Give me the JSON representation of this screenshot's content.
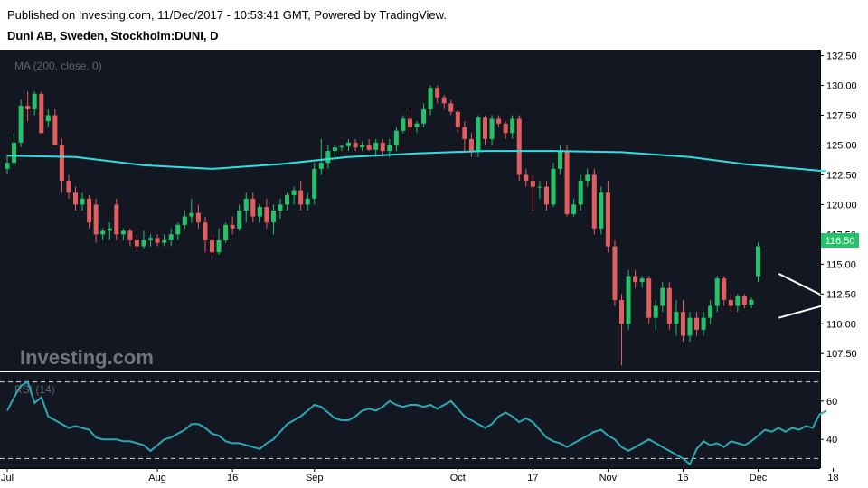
{
  "header": {
    "published": "Published on Investing.com, 11/Dec/2017 - 10:53:41 GMT, Powered by TradingView.",
    "symbol": "Duni AB, Sweden, Stockholm:DUNI, D"
  },
  "watermark": "Investing.com",
  "indicator_label": "MA (200, close, 0)",
  "rsi_label": "RSI (14)",
  "last_price_label": "116.50",
  "colors": {
    "background": "#131722",
    "up": "#26c26a",
    "down": "#e25d5d",
    "ma": "#2ee0e0",
    "rsi": "#2aa9b4",
    "axis_text": "#000000",
    "badge": "#26c26a"
  },
  "chart_data": [
    {
      "type": "candlestick",
      "title": "Duni AB, Sweden, Stockholm:DUNI, D",
      "y_ticks": [
        "107.50",
        "110.00",
        "112.50",
        "115.00",
        "117.50",
        "120.00",
        "122.50",
        "125.00",
        "127.50",
        "130.00",
        "132.50"
      ],
      "ylim": [
        106.0,
        133.0
      ],
      "x_ticks": [
        {
          "label": "Jul",
          "index": 0
        },
        {
          "label": "Aug",
          "index": 22
        },
        {
          "label": "16",
          "index": 33
        },
        {
          "label": "Sep",
          "index": 45
        },
        {
          "label": "Oct",
          "index": 66
        },
        {
          "label": "17",
          "index": 77
        },
        {
          "label": "Nov",
          "index": 88
        },
        {
          "label": "16",
          "index": 99
        },
        {
          "label": "Dec",
          "index": 110
        },
        {
          "label": "18",
          "index": 121
        }
      ],
      "candles": [
        [
          123.0,
          124.2,
          122.6,
          123.5
        ],
        [
          123.5,
          126.0,
          123.0,
          125.2
        ],
        [
          125.2,
          128.8,
          124.8,
          128.3
        ],
        [
          128.3,
          129.5,
          127.0,
          128.0
        ],
        [
          128.0,
          129.5,
          127.5,
          129.3
        ],
        [
          129.3,
          129.5,
          126.0,
          126.0
        ],
        [
          127.0,
          128.0,
          126.5,
          127.5
        ],
        [
          127.5,
          128.0,
          125.0,
          125.0
        ],
        [
          125.0,
          125.5,
          121.0,
          122.0
        ],
        [
          122.0,
          122.5,
          120.5,
          121.0
        ],
        [
          121.0,
          121.5,
          119.5,
          120.0
        ],
        [
          120.0,
          121.0,
          119.5,
          120.5
        ],
        [
          120.5,
          120.8,
          118.0,
          118.5
        ],
        [
          120.0,
          120.5,
          116.8,
          117.5
        ],
        [
          117.5,
          118.0,
          117.0,
          117.8
        ],
        [
          117.8,
          118.5,
          117.0,
          118.0
        ],
        [
          120.0,
          120.5,
          117.0,
          117.5
        ],
        [
          117.5,
          118.0,
          117.0,
          117.8
        ],
        [
          117.8,
          118.0,
          116.5,
          117.0
        ],
        [
          117.0,
          117.5,
          116.0,
          116.5
        ],
        [
          116.5,
          117.8,
          116.3,
          117.0
        ],
        [
          117.0,
          117.5,
          116.5,
          117.2
        ],
        [
          117.2,
          117.5,
          116.5,
          116.8
        ],
        [
          116.8,
          117.5,
          116.5,
          117.0
        ],
        [
          117.0,
          118.0,
          116.5,
          117.5
        ],
        [
          117.5,
          118.5,
          117.0,
          118.3
        ],
        [
          118.3,
          119.5,
          118.0,
          119.0
        ],
        [
          119.0,
          120.5,
          118.5,
          119.3
        ],
        [
          119.3,
          120.0,
          118.0,
          118.5
        ],
        [
          118.5,
          119.0,
          116.0,
          117.0
        ],
        [
          117.0,
          117.5,
          115.5,
          116.0
        ],
        [
          116.0,
          118.0,
          115.8,
          117.0
        ],
        [
          117.0,
          118.5,
          116.8,
          118.3
        ],
        [
          118.3,
          119.0,
          117.5,
          118.0
        ],
        [
          118.0,
          120.0,
          117.8,
          119.5
        ],
        [
          119.5,
          121.0,
          118.5,
          120.5
        ],
        [
          120.5,
          121.0,
          118.5,
          119.0
        ],
        [
          119.0,
          120.0,
          118.5,
          119.8
        ],
        [
          119.8,
          120.5,
          118.0,
          118.5
        ],
        [
          118.5,
          120.0,
          117.5,
          119.5
        ],
        [
          119.5,
          120.5,
          118.8,
          120.0
        ],
        [
          120.0,
          121.0,
          119.5,
          120.8
        ],
        [
          120.8,
          121.5,
          120.0,
          121.2
        ],
        [
          121.2,
          122.0,
          119.5,
          120.0
        ],
        [
          120.0,
          121.0,
          119.5,
          120.5
        ],
        [
          120.5,
          123.5,
          120.0,
          123.0
        ],
        [
          123.0,
          125.5,
          122.5,
          123.5
        ],
        [
          123.5,
          125.0,
          123.0,
          124.5
        ],
        [
          124.5,
          125.0,
          124.0,
          124.8
        ],
        [
          124.8,
          125.0,
          124.5,
          124.9
        ],
        [
          124.9,
          125.5,
          124.5,
          125.2
        ],
        [
          125.2,
          125.5,
          124.5,
          124.8
        ],
        [
          124.8,
          125.3,
          124.5,
          125.0
        ],
        [
          125.0,
          125.5,
          124.5,
          124.6
        ],
        [
          124.6,
          125.5,
          124.0,
          125.2
        ],
        [
          125.2,
          125.5,
          124.0,
          124.5
        ],
        [
          124.5,
          125.5,
          124.0,
          125.0
        ],
        [
          125.0,
          126.5,
          124.5,
          126.2
        ],
        [
          126.2,
          127.5,
          126.0,
          127.2
        ],
        [
          127.2,
          128.0,
          126.0,
          126.5
        ],
        [
          126.5,
          127.0,
          126.0,
          126.8
        ],
        [
          126.8,
          128.5,
          126.5,
          128.0
        ],
        [
          128.0,
          130.0,
          127.5,
          129.8
        ],
        [
          129.8,
          130.0,
          128.5,
          129.0
        ],
        [
          129.0,
          129.2,
          128.0,
          128.5
        ],
        [
          128.5,
          128.8,
          127.5,
          127.8
        ],
        [
          127.8,
          128.0,
          126.0,
          126.5
        ],
        [
          126.5,
          127.0,
          124.5,
          125.5
        ],
        [
          125.5,
          126.0,
          124.0,
          124.5
        ],
        [
          124.5,
          127.5,
          124.0,
          127.3
        ],
        [
          127.3,
          127.5,
          125.0,
          125.5
        ],
        [
          125.5,
          127.5,
          125.0,
          127.2
        ],
        [
          127.2,
          127.5,
          126.5,
          126.8
        ],
        [
          126.8,
          127.0,
          125.5,
          126.0
        ],
        [
          126.0,
          127.5,
          125.5,
          127.2
        ],
        [
          127.2,
          127.5,
          122.0,
          122.5
        ],
        [
          122.5,
          123.0,
          121.5,
          122.0
        ],
        [
          122.0,
          122.5,
          119.5,
          121.5
        ],
        [
          121.5,
          122.0,
          120.5,
          121.5
        ],
        [
          121.5,
          122.0,
          119.5,
          120.0
        ],
        [
          120.0,
          123.5,
          119.8,
          123.0
        ],
        [
          123.0,
          125.0,
          122.5,
          124.5
        ],
        [
          124.5,
          125.0,
          119.0,
          119.2
        ],
        [
          119.2,
          120.5,
          119.0,
          120.0
        ],
        [
          120.0,
          122.5,
          119.5,
          122.0
        ],
        [
          122.0,
          123.0,
          121.5,
          122.5
        ],
        [
          122.5,
          123.0,
          117.5,
          118.0
        ],
        [
          118.0,
          121.5,
          117.5,
          121.0
        ],
        [
          121.0,
          122.0,
          116.0,
          116.5
        ],
        [
          116.5,
          117.0,
          111.5,
          112.0
        ],
        [
          112.0,
          112.5,
          106.5,
          110.0
        ],
        [
          110.0,
          114.5,
          109.5,
          114.0
        ],
        [
          114.0,
          114.5,
          113.0,
          113.5
        ],
        [
          113.5,
          114.0,
          113.0,
          113.8
        ],
        [
          113.8,
          114.0,
          110.0,
          110.5
        ],
        [
          110.5,
          112.0,
          109.5,
          111.5
        ],
        [
          111.5,
          113.5,
          111.0,
          113.0
        ],
        [
          113.0,
          113.5,
          109.5,
          110.0
        ],
        [
          110.0,
          112.0,
          109.0,
          111.0
        ],
        [
          111.0,
          112.0,
          108.5,
          109.0
        ],
        [
          109.0,
          111.0,
          108.5,
          110.5
        ],
        [
          110.5,
          111.0,
          109.0,
          109.5
        ],
        [
          109.5,
          111.0,
          109.0,
          110.5
        ],
        [
          110.5,
          112.0,
          110.0,
          111.5
        ],
        [
          111.5,
          114.0,
          111.0,
          113.8
        ],
        [
          113.8,
          114.0,
          111.5,
          112.0
        ],
        [
          112.0,
          112.5,
          111.0,
          111.5
        ],
        [
          111.5,
          112.5,
          111.0,
          112.3
        ],
        [
          112.3,
          112.5,
          111.3,
          111.6
        ],
        [
          111.6,
          112.2,
          111.3,
          112.0
        ],
        [
          114.0,
          116.8,
          113.5,
          116.5
        ]
      ],
      "moving_average": [
        [
          0,
          124.1
        ],
        [
          10,
          124.0
        ],
        [
          20,
          123.3
        ],
        [
          30,
          123.0
        ],
        [
          40,
          123.4
        ],
        [
          50,
          124.0
        ],
        [
          60,
          124.3
        ],
        [
          70,
          124.5
        ],
        [
          80,
          124.5
        ],
        [
          90,
          124.4
        ],
        [
          100,
          124.0
        ],
        [
          108,
          123.4
        ],
        [
          120,
          122.8
        ]
      ],
      "pattern_lines": [
        [
          [
            113,
            114.2
          ],
          [
            120,
            112.2
          ]
        ],
        [
          [
            113,
            110.5
          ],
          [
            120,
            111.6
          ]
        ]
      ]
    },
    {
      "type": "line",
      "series": [
        {
          "values": [
            55,
            62,
            68,
            70,
            59,
            62,
            52,
            50,
            48,
            46,
            47,
            46,
            45,
            41,
            40,
            40,
            40,
            39,
            39,
            38,
            37,
            34,
            37,
            40,
            41,
            43,
            45,
            48,
            48,
            46,
            43,
            42,
            39,
            38,
            38,
            37,
            36,
            35,
            38,
            40,
            44,
            48,
            50,
            52,
            55,
            58,
            57,
            54,
            51,
            50,
            50,
            52,
            55,
            56,
            55,
            57,
            60,
            58,
            57,
            58,
            58,
            57,
            58,
            56,
            58,
            60,
            56,
            52,
            50,
            48,
            46,
            48,
            52,
            54,
            52,
            49,
            51,
            49,
            45,
            41,
            39,
            38,
            36,
            38,
            40,
            42,
            44,
            45,
            42,
            40,
            36,
            34,
            36,
            38,
            40,
            38,
            36,
            34,
            32,
            30,
            27,
            35,
            39,
            37,
            38,
            36,
            39,
            38,
            37,
            39,
            42,
            45,
            44,
            46,
            44,
            46,
            45,
            47,
            46,
            53,
            55
          ]
        }
      ],
      "y_ticks": [
        "40",
        "60"
      ],
      "ylim": [
        25,
        75
      ],
      "levels": [
        30,
        70
      ]
    }
  ]
}
